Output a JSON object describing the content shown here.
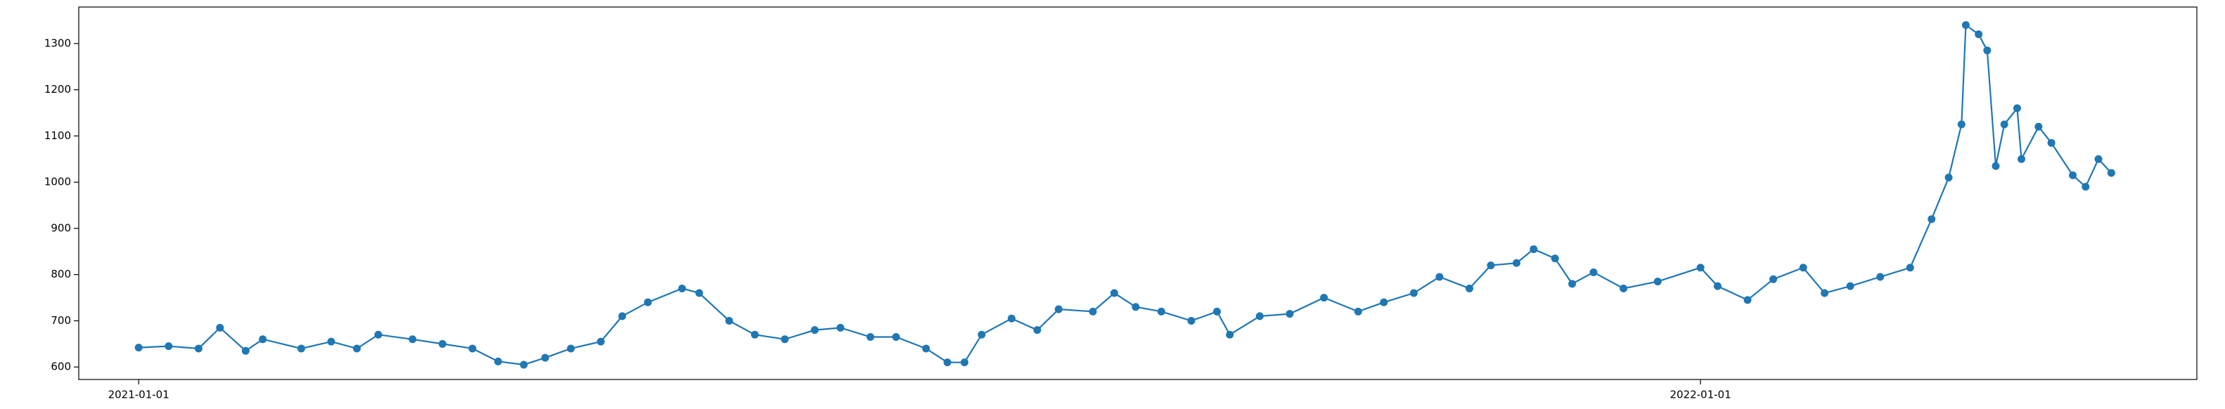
{
  "chart_data": {
    "type": "line",
    "color": "#1f77b4",
    "markers": true,
    "grid": false,
    "x": [
      "2021-01-01",
      "2021-01-08",
      "2021-01-15",
      "2021-01-20",
      "2021-01-26",
      "2021-01-30",
      "2021-02-08",
      "2021-02-15",
      "2021-02-21",
      "2021-02-26",
      "2021-03-06",
      "2021-03-13",
      "2021-03-20",
      "2021-03-26",
      "2021-04-01",
      "2021-04-06",
      "2021-04-12",
      "2021-04-19",
      "2021-04-24",
      "2021-04-30",
      "2021-05-08",
      "2021-05-12",
      "2021-05-19",
      "2021-05-25",
      "2021-06-01",
      "2021-06-08",
      "2021-06-14",
      "2021-06-21",
      "2021-06-27",
      "2021-07-04",
      "2021-07-09",
      "2021-07-13",
      "2021-07-17",
      "2021-07-24",
      "2021-07-30",
      "2021-08-04",
      "2021-08-12",
      "2021-08-17",
      "2021-08-22",
      "2021-08-28",
      "2021-09-04",
      "2021-09-10",
      "2021-09-13",
      "2021-09-20",
      "2021-09-27",
      "2021-10-05",
      "2021-10-13",
      "2021-10-19",
      "2021-10-26",
      "2021-11-01",
      "2021-11-08",
      "2021-11-13",
      "2021-11-19",
      "2021-11-23",
      "2021-11-28",
      "2021-12-02",
      "2021-12-07",
      "2021-12-14",
      "2021-12-22",
      "2022-01-01",
      "2022-01-05",
      "2022-01-12",
      "2022-01-18",
      "2022-01-25",
      "2022-01-30",
      "2022-02-05",
      "2022-02-12",
      "2022-02-19",
      "2022-02-24",
      "2022-02-28",
      "2022-03-03",
      "2022-03-04",
      "2022-03-07",
      "2022-03-09",
      "2022-03-11",
      "2022-03-13",
      "2022-03-16",
      "2022-03-17",
      "2022-03-21",
      "2022-03-24",
      "2022-03-29",
      "2022-04-01",
      "2022-04-04",
      "2022-04-07"
    ],
    "values": [
      642,
      645,
      640,
      685,
      635,
      660,
      640,
      655,
      640,
      670,
      660,
      650,
      640,
      612,
      605,
      620,
      640,
      655,
      710,
      740,
      770,
      760,
      700,
      670,
      660,
      680,
      685,
      665,
      665,
      640,
      610,
      610,
      670,
      705,
      680,
      725,
      720,
      760,
      730,
      720,
      700,
      720,
      670,
      710,
      715,
      750,
      720,
      740,
      760,
      795,
      770,
      820,
      825,
      855,
      835,
      780,
      805,
      770,
      785,
      815,
      775,
      745,
      790,
      815,
      760,
      775,
      795,
      815,
      920,
      1010,
      1125,
      1340,
      1320,
      1285,
      1035,
      1125,
      1160,
      1050,
      1120,
      1085,
      1015,
      990,
      1050,
      1020
    ],
    "xlim": [
      "2020-12-18",
      "2022-04-27"
    ],
    "xticks": [
      "2021-01-01",
      "2022-01-01"
    ],
    "ylim": [
      573,
      1379
    ],
    "yticks": [
      600,
      700,
      800,
      900,
      1000,
      1100,
      1200,
      1300
    ]
  }
}
